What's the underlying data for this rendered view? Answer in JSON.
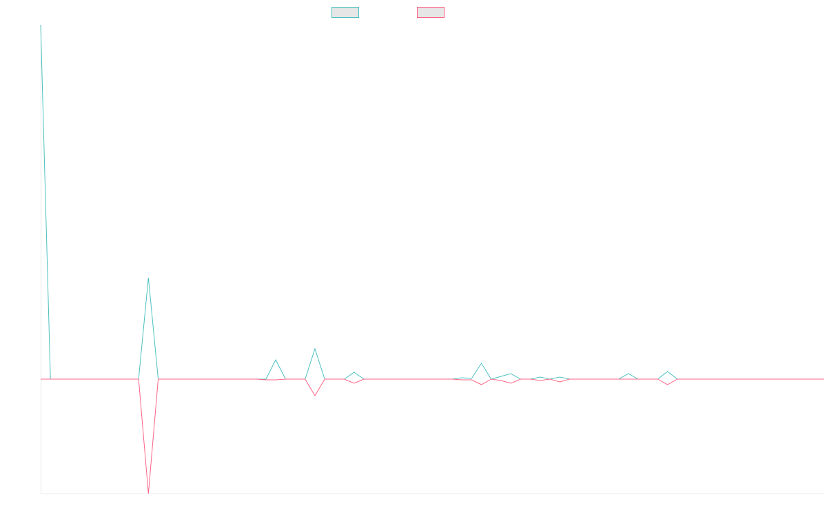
{
  "chart_data": {
    "type": "line",
    "title": "",
    "xlabel": "",
    "ylabel": "",
    "x": [
      0,
      1,
      2,
      3,
      4,
      5,
      6,
      7,
      8,
      9,
      10,
      11,
      12,
      13,
      14,
      15,
      16,
      17,
      18,
      19,
      20,
      21,
      22,
      23,
      24,
      25,
      26,
      27,
      28,
      29,
      30,
      31,
      32,
      33,
      34,
      35,
      36,
      37,
      38,
      39,
      40,
      41,
      42,
      43,
      44,
      45,
      46,
      47,
      48,
      49,
      50,
      51,
      52,
      53,
      54,
      55,
      56,
      57,
      58,
      59,
      60,
      61,
      62,
      63,
      64,
      65,
      66,
      67,
      68,
      69,
      70,
      71,
      72,
      73,
      74,
      75,
      76,
      77,
      78,
      79,
      80
    ],
    "xlim": [
      0,
      80
    ],
    "ylim": [
      -166,
      514
    ],
    "grid": false,
    "legend": {
      "position": "top-center",
      "show_labels": false
    },
    "series": [
      {
        "color": "#4bc0c0",
        "fill": "#e6e6e6",
        "values": [
          514,
          0,
          0,
          0,
          0,
          0,
          0,
          0,
          0,
          0,
          0,
          147,
          0,
          0,
          0,
          0,
          0,
          0,
          0,
          0,
          0,
          0,
          0,
          0,
          28,
          0,
          0,
          0,
          44,
          0,
          0,
          0,
          10,
          0,
          0,
          0,
          0,
          0,
          0,
          0,
          0,
          0,
          0,
          2,
          1,
          23,
          0,
          4,
          8,
          0,
          0,
          3,
          0,
          3,
          0,
          0,
          0,
          0,
          0,
          0,
          8,
          0,
          0,
          0,
          11,
          0,
          0,
          0,
          0,
          0,
          0,
          0,
          0,
          0,
          0,
          0,
          0,
          0,
          0,
          0,
          0
        ]
      },
      {
        "color": "#ff6384",
        "fill": "#e6e6e6",
        "values": [
          0,
          0,
          0,
          0,
          0,
          0,
          0,
          0,
          0,
          0,
          0,
          -166,
          0,
          0,
          0,
          0,
          0,
          0,
          0,
          0,
          0,
          0,
          0,
          -1,
          -1,
          0,
          0,
          0,
          -24,
          0,
          0,
          0,
          -6,
          0,
          0,
          0,
          0,
          0,
          0,
          0,
          0,
          0,
          0,
          -1,
          -1,
          -8,
          0,
          -2,
          -6,
          0,
          0,
          -2,
          0,
          -4,
          0,
          0,
          0,
          0,
          0,
          0,
          0,
          0,
          0,
          0,
          -8,
          0,
          0,
          0,
          0,
          0,
          0,
          0,
          0,
          0,
          0,
          0,
          0,
          0,
          0,
          0,
          0
        ]
      }
    ]
  }
}
